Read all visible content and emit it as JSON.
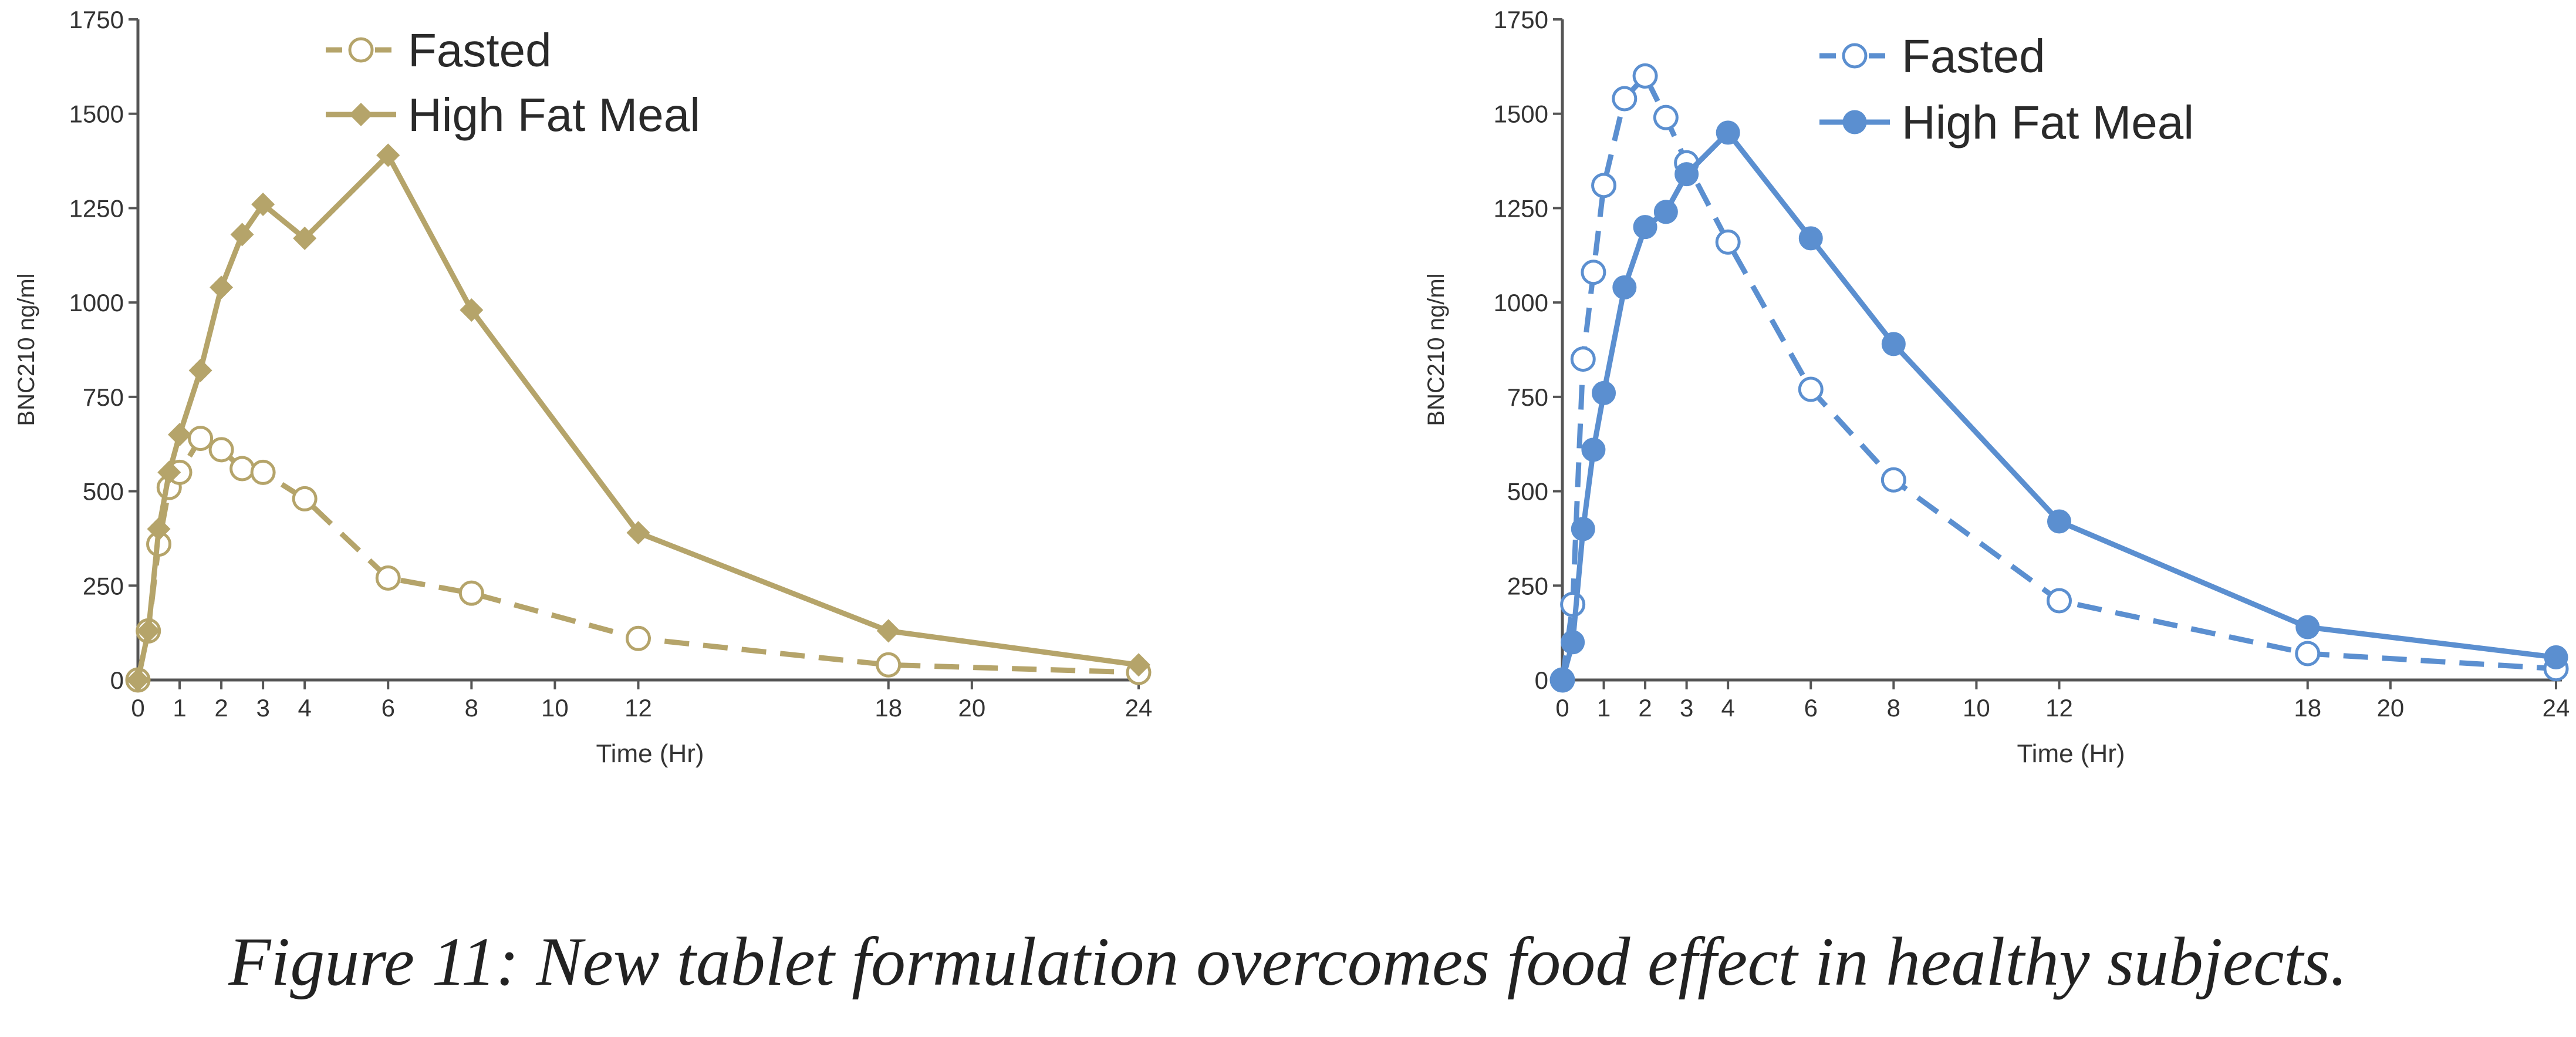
{
  "caption": "Figure 11: New tablet formulation overcomes food effect in healthy subjects.",
  "chart_data": [
    {
      "type": "line",
      "title": "",
      "xlabel": "Time (Hr)",
      "ylabel": "BNC210 ng/ml",
      "xlim": [
        0,
        24
      ],
      "ylim": [
        0,
        1750
      ],
      "x_ticks": [
        0,
        1,
        2,
        3,
        4,
        6,
        8,
        10,
        12,
        18,
        20,
        24
      ],
      "y_ticks": [
        0,
        250,
        500,
        750,
        1000,
        1250,
        1500,
        1750
      ],
      "grid": false,
      "legend_position": "top-left",
      "color": "#b5a46a",
      "series": [
        {
          "name": "Fasted",
          "style": "dashed",
          "marker": "open-circle",
          "x": [
            0,
            0.25,
            0.5,
            0.75,
            1,
            1.5,
            2,
            2.5,
            3,
            4,
            6,
            8,
            12,
            18,
            24
          ],
          "values": [
            0,
            130,
            360,
            510,
            550,
            640,
            610,
            560,
            550,
            480,
            270,
            230,
            110,
            40,
            20
          ]
        },
        {
          "name": "High Fat Meal",
          "style": "solid",
          "marker": "filled-diamond",
          "x": [
            0,
            0.25,
            0.5,
            0.75,
            1,
            1.5,
            2,
            2.5,
            3,
            4,
            6,
            8,
            12,
            18,
            24
          ],
          "values": [
            0,
            130,
            400,
            550,
            650,
            820,
            1040,
            1180,
            1260,
            1170,
            1390,
            980,
            390,
            130,
            40
          ]
        }
      ]
    },
    {
      "type": "line",
      "title": "",
      "xlabel": "Time (Hr)",
      "ylabel": "BNC210 ng/ml",
      "xlim": [
        0,
        24
      ],
      "ylim": [
        0,
        1750
      ],
      "x_ticks": [
        0,
        1,
        2,
        3,
        4,
        6,
        8,
        10,
        12,
        18,
        20,
        24
      ],
      "y_ticks": [
        0,
        250,
        500,
        750,
        1000,
        1250,
        1500,
        1750
      ],
      "grid": false,
      "legend_position": "top-left",
      "color": "#5b8fd0",
      "series": [
        {
          "name": "Fasted",
          "style": "dashed",
          "marker": "open-circle",
          "x": [
            0,
            0.25,
            0.5,
            0.75,
            1,
            1.5,
            2,
            2.5,
            3,
            4,
            6,
            8,
            12,
            18,
            24
          ],
          "values": [
            0,
            200,
            850,
            1080,
            1310,
            1540,
            1600,
            1490,
            1370,
            1160,
            770,
            530,
            210,
            70,
            30
          ]
        },
        {
          "name": "High Fat Meal",
          "style": "solid",
          "marker": "filled-circle",
          "x": [
            0,
            0.25,
            0.5,
            0.75,
            1,
            1.5,
            2,
            2.5,
            3,
            4,
            6,
            8,
            12,
            18,
            24
          ],
          "values": [
            0,
            100,
            400,
            610,
            760,
            1040,
            1200,
            1240,
            1340,
            1450,
            1170,
            890,
            420,
            140,
            60
          ]
        }
      ]
    }
  ]
}
